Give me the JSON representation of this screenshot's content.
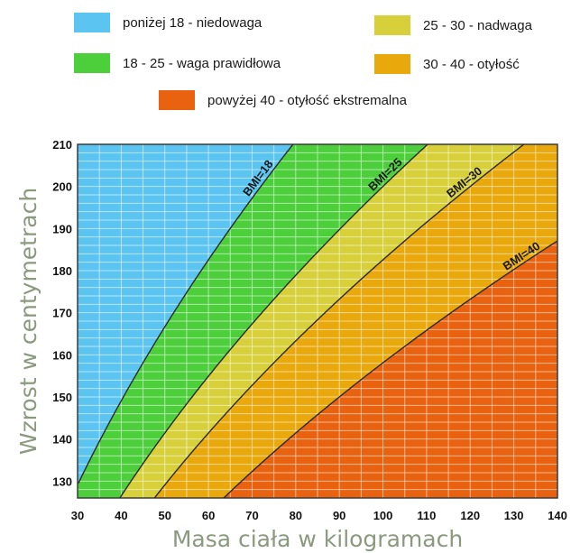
{
  "legend": [
    {
      "label": "poniżej 18  - niedowaga",
      "color": "#5bc4f1"
    },
    {
      "label": "25 - 30  - nadwaga",
      "color": "#d8d03a"
    },
    {
      "label": "18 - 25 - waga prawidłowa",
      "color": "#4ccf3b"
    },
    {
      "label": "30 - 40  - otyłość",
      "color": "#e9a80c"
    },
    {
      "label": "powyżej 40  - otyłość ekstremalna",
      "color": "#e8620f"
    }
  ],
  "chart_data": {
    "type": "area",
    "title": "",
    "xlabel": "Masa ciała w kilogramach",
    "ylabel": "Wzrost w centymetrach",
    "xlim": [
      30,
      140
    ],
    "ylim": [
      126,
      210
    ],
    "x_ticks": [
      30,
      40,
      50,
      60,
      70,
      80,
      90,
      100,
      110,
      120,
      130,
      140
    ],
    "y_ticks": [
      130,
      140,
      150,
      160,
      170,
      180,
      190,
      200,
      210
    ],
    "grid": true,
    "bands": [
      {
        "name": "poniżej 18 - niedowaga",
        "bmi_min": 0,
        "bmi_max": 18,
        "color": "#5bc4f1"
      },
      {
        "name": "18 - 25 - waga prawidłowa",
        "bmi_min": 18,
        "bmi_max": 25,
        "color": "#4ccf3b"
      },
      {
        "name": "25 - 30 - nadwaga",
        "bmi_min": 25,
        "bmi_max": 30,
        "color": "#d8d03a"
      },
      {
        "name": "30 - 40 - otyłość",
        "bmi_min": 30,
        "bmi_max": 40,
        "color": "#e9a80c"
      },
      {
        "name": "powyżej 40 - otyłość ekstremalna",
        "bmi_min": 40,
        "bmi_max": 100,
        "color": "#e8620f"
      }
    ],
    "curves": [
      {
        "label": "BMI=18",
        "bmi": 18,
        "label_weight": 73
      },
      {
        "label": "BMI=25",
        "bmi": 25,
        "label_weight": 102
      },
      {
        "label": "BMI=30",
        "bmi": 30,
        "label_weight": 120
      },
      {
        "label": "BMI=40",
        "bmi": 40,
        "label_weight": 133
      }
    ]
  }
}
